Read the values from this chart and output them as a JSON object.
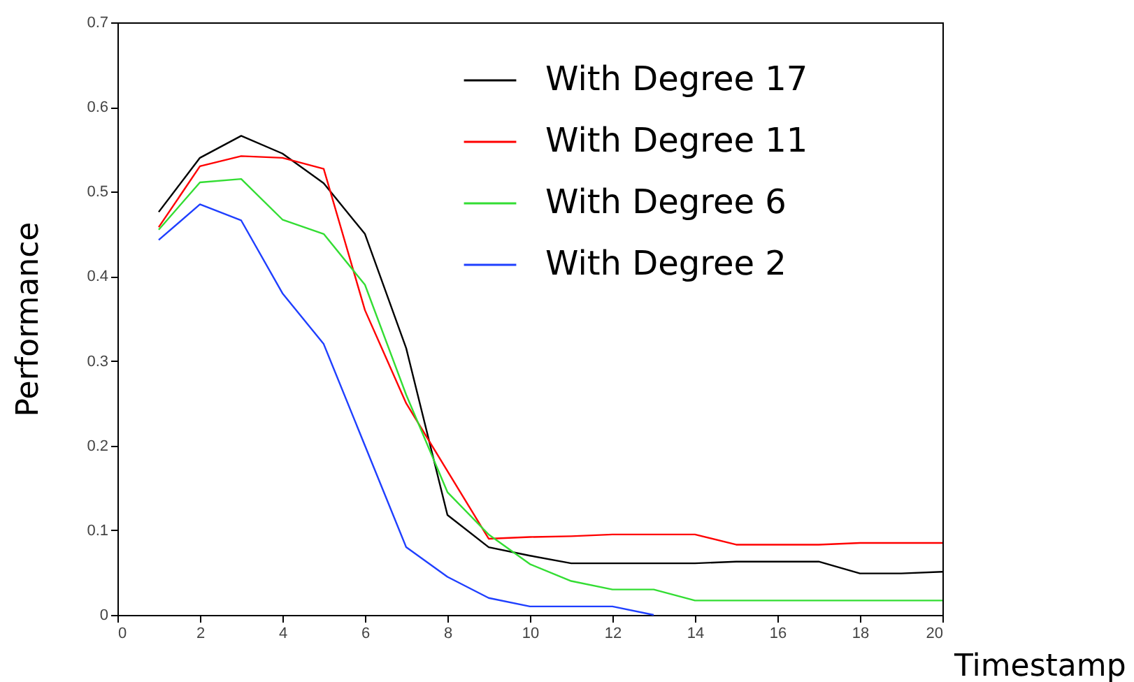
{
  "chart_data": {
    "type": "line",
    "xlabel": "Timestamp",
    "ylabel": "Performance",
    "x": [
      1,
      2,
      3,
      4,
      5,
      6,
      7,
      8,
      9,
      10,
      11,
      12,
      13,
      14,
      15,
      16,
      17,
      18,
      19,
      20
    ],
    "xlim": [
      0,
      20
    ],
    "xticks": [
      0,
      2,
      4,
      6,
      8,
      10,
      12,
      14,
      16,
      18,
      20
    ],
    "ylim": [
      0,
      0.7
    ],
    "yticks": [
      0,
      0.1,
      0.2,
      0.3,
      0.4,
      0.5,
      0.6,
      0.7
    ],
    "grid": false,
    "legend": "top right",
    "marker": "none",
    "line_style": "solid",
    "series": [
      {
        "name": "With Degree 17",
        "color": "#000000",
        "values": [
          0.476,
          0.54,
          0.566,
          0.545,
          0.51,
          0.45,
          0.315,
          0.118,
          0.08,
          0.07,
          0.061,
          0.061,
          0.061,
          0.061,
          0.063,
          0.063,
          0.063,
          0.049,
          0.049,
          0.051
        ]
      },
      {
        "name": "With Degree 11",
        "color": "#ff0000",
        "values": [
          0.458,
          0.53,
          0.542,
          0.54,
          0.527,
          0.36,
          0.25,
          0.17,
          0.09,
          0.092,
          0.093,
          0.095,
          0.095,
          0.095,
          0.083,
          0.083,
          0.083,
          0.085,
          0.085,
          0.085
        ]
      },
      {
        "name": "With Degree 6",
        "color": "#33dd33",
        "values": [
          0.455,
          0.511,
          0.515,
          0.467,
          0.45,
          0.39,
          0.26,
          0.145,
          0.095,
          0.06,
          0.04,
          0.03,
          0.03,
          0.017,
          0.017,
          0.017,
          0.017,
          0.017,
          0.017,
          0.017
        ]
      },
      {
        "name": "With Degree 2",
        "color": "#1f3fff",
        "values": [
          0.443,
          0.485,
          0.466,
          0.38,
          0.32,
          0.2,
          0.08,
          0.045,
          0.02,
          0.01,
          0.01,
          0.01,
          0.0,
          null,
          null,
          null,
          null,
          null,
          null,
          null
        ]
      }
    ]
  }
}
